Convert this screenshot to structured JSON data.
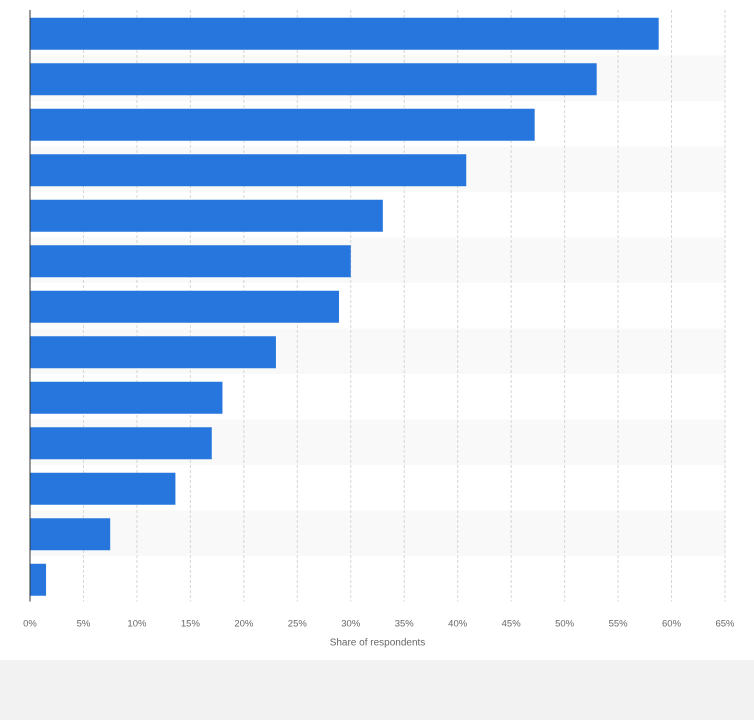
{
  "chart_data": {
    "type": "bar",
    "orientation": "horizontal",
    "title": "",
    "categories": [
      "",
      "",
      "",
      "",
      "",
      "",
      "",
      "",
      "",
      "",
      "",
      "",
      ""
    ],
    "values": [
      58.8,
      53,
      47.2,
      40.8,
      33,
      30,
      28.9,
      23,
      18,
      17,
      13.6,
      7.5,
      1.5
    ],
    "xlabel": "Share of respondents",
    "ylabel": "",
    "xlim": [
      0,
      65
    ],
    "xticks": [
      "0%",
      "5%",
      "10%",
      "15%",
      "20%",
      "25%",
      "30%",
      "35%",
      "40%",
      "45%",
      "50%",
      "55%",
      "60%",
      "65%"
    ],
    "grid": true,
    "legend": "none",
    "colors": {
      "bar": "#2776dd",
      "band_light": "#f9f9f9",
      "band_dark": "#f2f2f2",
      "grid": "#d6d6d6",
      "axis": "#333333",
      "tick_text": "#666666"
    }
  }
}
